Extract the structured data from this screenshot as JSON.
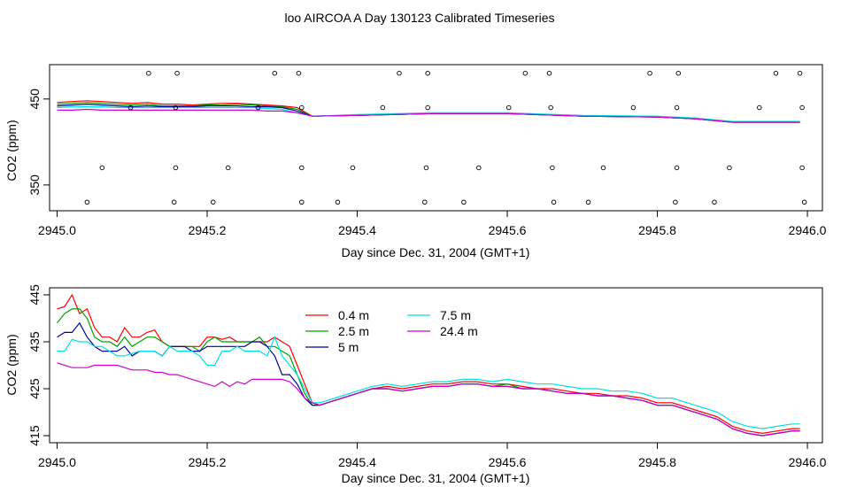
{
  "figure_title": "loo AIRCOA A  Day 130123  Calibrated Timeseries",
  "chart_data": [
    {
      "type": "scatter",
      "panel": "top",
      "xlabel": "Day since Dec. 31, 2004 (GMT+1)",
      "ylabel": "CO2 (ppm)",
      "xlim": [
        2944.99,
        2946.02
      ],
      "ylim": [
        320,
        490
      ],
      "xticks": [
        "2945.0",
        "2945.2",
        "2945.4",
        "2945.6",
        "2945.8",
        "2946.0"
      ],
      "yticks": [
        "350",
        "450"
      ],
      "grid": false,
      "colors": [
        "#ff0000",
        "#00a000",
        "#0000a0",
        "#00e0e0",
        "#d000d0"
      ],
      "x": [
        2945.0,
        2945.02,
        2945.04,
        2945.06,
        2945.08,
        2945.1,
        2945.12,
        2945.14,
        2945.16,
        2945.18,
        2945.2,
        2945.22,
        2945.24,
        2945.26,
        2945.28,
        2945.3,
        2945.32,
        2945.34,
        2945.4,
        2945.5,
        2945.6,
        2945.7,
        2945.8,
        2945.85,
        2945.9,
        2945.95,
        2945.99
      ],
      "series": [
        {
          "values": [
            446,
            447,
            448,
            447,
            446,
            445,
            446,
            444,
            444,
            443,
            444,
            445,
            445,
            444,
            443,
            442,
            440,
            430,
            431,
            433,
            433,
            430,
            429,
            427,
            423,
            423,
            423
          ]
        },
        {
          "values": [
            444,
            445,
            446,
            445,
            444,
            443,
            444,
            442,
            442,
            442,
            443,
            443,
            444,
            443,
            442,
            441,
            438,
            430,
            431,
            433,
            433,
            430,
            429,
            427,
            423,
            423,
            423
          ]
        },
        {
          "values": [
            442,
            443,
            444,
            443,
            442,
            441,
            442,
            441,
            441,
            441,
            442,
            442,
            442,
            441,
            441,
            440,
            436,
            430,
            431,
            433,
            433,
            430,
            429,
            427,
            423,
            423,
            423
          ]
        },
        {
          "values": [
            440,
            441,
            441,
            441,
            440,
            440,
            440,
            440,
            440,
            440,
            440,
            440,
            440,
            440,
            439,
            438,
            434,
            430,
            432,
            434,
            434,
            431,
            430,
            428,
            424,
            424,
            424
          ]
        },
        {
          "values": [
            437,
            437,
            438,
            437,
            437,
            437,
            437,
            437,
            437,
            437,
            437,
            437,
            437,
            437,
            436,
            436,
            434,
            430,
            431,
            433,
            433,
            430,
            429,
            427,
            423,
            423,
            423
          ]
        }
      ],
      "markers": [
        {
          "x": 2945.122,
          "y": 480
        },
        {
          "x": 2945.16,
          "y": 480
        },
        {
          "x": 2945.29,
          "y": 480
        },
        {
          "x": 2945.322,
          "y": 480
        },
        {
          "x": 2945.456,
          "y": 480
        },
        {
          "x": 2945.494,
          "y": 480
        },
        {
          "x": 2945.624,
          "y": 480
        },
        {
          "x": 2945.656,
          "y": 480
        },
        {
          "x": 2945.79,
          "y": 480
        },
        {
          "x": 2945.828,
          "y": 480
        },
        {
          "x": 2945.958,
          "y": 480
        },
        {
          "x": 2945.99,
          "y": 480
        },
        {
          "x": 2945.098,
          "y": 440
        },
        {
          "x": 2945.158,
          "y": 440
        },
        {
          "x": 2945.268,
          "y": 440
        },
        {
          "x": 2945.326,
          "y": 440
        },
        {
          "x": 2945.434,
          "y": 440
        },
        {
          "x": 2945.494,
          "y": 440
        },
        {
          "x": 2945.602,
          "y": 440
        },
        {
          "x": 2945.658,
          "y": 440
        },
        {
          "x": 2945.768,
          "y": 440
        },
        {
          "x": 2945.826,
          "y": 440
        },
        {
          "x": 2945.936,
          "y": 440
        },
        {
          "x": 2945.993,
          "y": 440
        },
        {
          "x": 2945.06,
          "y": 370
        },
        {
          "x": 2945.158,
          "y": 370
        },
        {
          "x": 2945.228,
          "y": 370
        },
        {
          "x": 2945.326,
          "y": 370
        },
        {
          "x": 2945.394,
          "y": 370
        },
        {
          "x": 2945.492,
          "y": 370
        },
        {
          "x": 2945.562,
          "y": 370
        },
        {
          "x": 2945.66,
          "y": 370
        },
        {
          "x": 2945.728,
          "y": 370
        },
        {
          "x": 2945.826,
          "y": 370
        },
        {
          "x": 2945.896,
          "y": 370
        },
        {
          "x": 2945.993,
          "y": 370
        },
        {
          "x": 2945.04,
          "y": 330
        },
        {
          "x": 2945.156,
          "y": 330
        },
        {
          "x": 2945.208,
          "y": 330
        },
        {
          "x": 2945.326,
          "y": 330
        },
        {
          "x": 2945.374,
          "y": 330
        },
        {
          "x": 2945.49,
          "y": 330
        },
        {
          "x": 2945.542,
          "y": 330
        },
        {
          "x": 2945.662,
          "y": 330
        },
        {
          "x": 2945.708,
          "y": 330
        },
        {
          "x": 2945.824,
          "y": 330
        },
        {
          "x": 2945.876,
          "y": 330
        },
        {
          "x": 2945.996,
          "y": 330
        }
      ]
    },
    {
      "type": "line",
      "panel": "bottom",
      "xlabel": "Day since Dec. 31, 2004 (GMT+1)",
      "ylabel": "CO2 (ppm)",
      "xlim": [
        2944.99,
        2946.02
      ],
      "ylim": [
        413.5,
        446.5
      ],
      "xticks": [
        "2945.0",
        "2945.2",
        "2945.4",
        "2945.6",
        "2945.8",
        "2946.0"
      ],
      "yticks": [
        "415",
        "425",
        "435",
        "445"
      ],
      "grid": false,
      "legend": "top-center",
      "x": [
        2945.0,
        2945.01,
        2945.02,
        2945.03,
        2945.04,
        2945.05,
        2945.06,
        2945.07,
        2945.08,
        2945.09,
        2945.1,
        2945.11,
        2945.12,
        2945.13,
        2945.14,
        2945.15,
        2945.16,
        2945.17,
        2945.18,
        2945.19,
        2945.2,
        2945.21,
        2945.22,
        2945.23,
        2945.24,
        2945.25,
        2945.26,
        2945.27,
        2945.28,
        2945.29,
        2945.3,
        2945.31,
        2945.32,
        2945.33,
        2945.34,
        2945.35,
        2945.36,
        2945.38,
        2945.4,
        2945.42,
        2945.44,
        2945.46,
        2945.48,
        2945.5,
        2945.52,
        2945.54,
        2945.56,
        2945.58,
        2945.6,
        2945.62,
        2945.64,
        2945.66,
        2945.68,
        2945.7,
        2945.72,
        2945.74,
        2945.76,
        2945.78,
        2945.8,
        2945.82,
        2945.84,
        2945.86,
        2945.88,
        2945.9,
        2945.92,
        2945.94,
        2945.96,
        2945.98,
        2945.99
      ],
      "series": [
        {
          "name": "0.4 m",
          "color": "#ff0000",
          "values": [
            442,
            442.5,
            445,
            441,
            442,
            438,
            436,
            436,
            435,
            438,
            436,
            436,
            437,
            437.5,
            435,
            434,
            434,
            434,
            434,
            434,
            436,
            436,
            435.5,
            436,
            435,
            435,
            435,
            435,
            435,
            436,
            435,
            434,
            430,
            426,
            422,
            421.5,
            422,
            423,
            424,
            425,
            425.5,
            425,
            425.5,
            426,
            426,
            426.5,
            426.5,
            426,
            426,
            425.5,
            425,
            425,
            424.5,
            424,
            424,
            423.5,
            423.5,
            423,
            422,
            422,
            421,
            420,
            419,
            417,
            416,
            415.5,
            416,
            416.5,
            416.5
          ]
        },
        {
          "name": "2.5 m",
          "color": "#00a000",
          "values": [
            439,
            441,
            442,
            442,
            440,
            436,
            435,
            435,
            434,
            436,
            434,
            435,
            436,
            436,
            435,
            434,
            434,
            434,
            434,
            433,
            435,
            436,
            435,
            435,
            435,
            435,
            435,
            436,
            434,
            434,
            433,
            432,
            428,
            424,
            421.5,
            421.5,
            422,
            423,
            424,
            425,
            425,
            424.5,
            425,
            425.5,
            425.5,
            426,
            426,
            425.5,
            426,
            425,
            425,
            424.5,
            424,
            424,
            423.5,
            423.5,
            423,
            422.5,
            421.5,
            421.5,
            420.5,
            419.5,
            418.5,
            416.5,
            415.5,
            415,
            415.5,
            416,
            416
          ]
        },
        {
          "name": "5 m",
          "color": "#0000a0",
          "values": [
            436,
            437,
            437,
            439,
            436,
            434,
            433,
            433,
            433,
            434,
            432,
            433,
            433,
            433,
            432,
            434,
            434,
            434,
            433,
            433,
            434,
            434,
            434,
            434,
            434,
            434,
            435,
            435,
            434,
            432,
            428,
            428,
            426,
            423,
            421.5,
            421.5,
            422,
            423,
            424,
            425,
            425,
            424.5,
            425,
            425.5,
            425.5,
            426,
            426,
            425.5,
            425.5,
            425,
            425,
            424.5,
            424,
            424,
            423.5,
            423.5,
            423,
            422.5,
            421.5,
            421.5,
            420.5,
            419.5,
            418.5,
            416.5,
            415.5,
            415,
            415.5,
            416,
            416
          ]
        },
        {
          "name": "7.5 m",
          "color": "#00e0e0",
          "values": [
            433,
            433,
            435.5,
            435,
            435,
            434,
            434,
            433,
            432,
            432,
            432.5,
            433,
            433,
            433,
            432,
            434,
            433,
            433,
            433,
            432,
            430,
            430,
            433,
            433,
            434,
            433,
            433,
            433,
            432,
            436,
            432,
            430,
            428,
            425,
            422,
            422,
            422.5,
            423.5,
            424.5,
            425.5,
            426,
            425.5,
            426,
            426.5,
            426.5,
            427,
            427,
            426.5,
            427,
            426.5,
            426,
            426,
            425.5,
            425,
            425,
            424.5,
            424.5,
            424,
            423,
            423,
            422,
            421,
            420,
            418,
            417,
            416.5,
            417,
            417.5,
            417.5
          ]
        },
        {
          "name": "24.4 m",
          "color": "#d000d0",
          "values": [
            430.5,
            430,
            429.5,
            429.5,
            429.5,
            430,
            430,
            430,
            430,
            429.5,
            429,
            429,
            429,
            428.5,
            428.5,
            428,
            428,
            427.5,
            427,
            426.5,
            426,
            425.5,
            426.5,
            425.5,
            426.5,
            426,
            427,
            427,
            427,
            427,
            427,
            426.5,
            425,
            423,
            422,
            421.5,
            422,
            423,
            424,
            425,
            425,
            424.5,
            425,
            425.5,
            425.5,
            426,
            426,
            425.5,
            425.5,
            425,
            425,
            424.5,
            424,
            424,
            423.5,
            423.5,
            423,
            422.5,
            421.5,
            421.5,
            420.5,
            419.5,
            418.5,
            416.5,
            415.5,
            415,
            415.5,
            416,
            416
          ]
        }
      ]
    }
  ]
}
